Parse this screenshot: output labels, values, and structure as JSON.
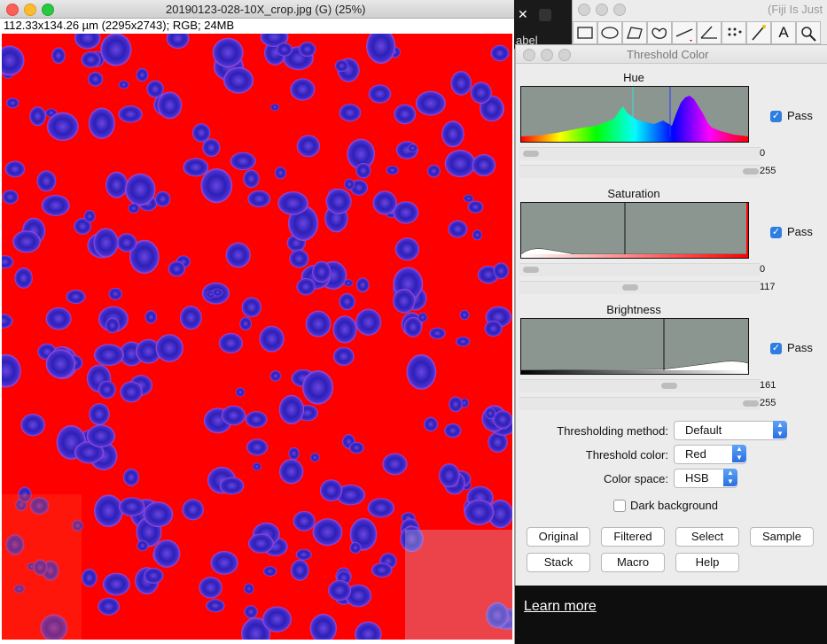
{
  "image_window": {
    "title": "20190123-028-10X_crop.jpg (G) (25%)",
    "subtitle": "112.33x134.26 µm (2295x2743); RGB; 24MB"
  },
  "fiji_window": {
    "title": "(Fiji Is Just",
    "tools": [
      "rectangle-tool",
      "oval-tool",
      "polygon-tool",
      "freehand-tool",
      "line-tool",
      "angle-tool",
      "point-tool",
      "wand-tool",
      "text-tool",
      "magnifier-tool"
    ],
    "text_tool_glyph": "A"
  },
  "threshold_panel": {
    "title": "Threshold Color",
    "sections": [
      {
        "label": "Hue",
        "pass_label": "Pass",
        "low": "0",
        "high": "255"
      },
      {
        "label": "Saturation",
        "pass_label": "Pass",
        "low": "0",
        "high": "117"
      },
      {
        "label": "Brightness",
        "pass_label": "Pass",
        "low": "161",
        "high": "255"
      }
    ],
    "method_label": "Thresholding method:",
    "method_value": "Default",
    "color_label": "Threshold color:",
    "color_value": "Red",
    "space_label": "Color space:",
    "space_value": "HSB",
    "dark_bg_label": "Dark background",
    "buttons": [
      "Original",
      "Filtered",
      "Select",
      "Sample",
      "Stack",
      "Macro",
      "Help"
    ]
  },
  "background_text": {
    "link": "Learn more",
    "partial_label": "abel"
  },
  "colors": {
    "threshold_red": "#ff0000",
    "nuclei_blue": "#3b2fbf",
    "pass_blue": "#2e7de1"
  }
}
